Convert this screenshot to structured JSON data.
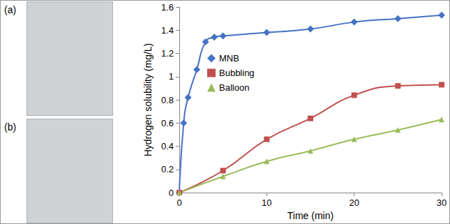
{
  "photos": [
    "(a)",
    "(b)"
  ],
  "chart_data": {
    "type": "line",
    "x_label": "Time (min)",
    "y_label": "Hydrogen solubility (mg/L)",
    "xlim": [
      0,
      30
    ],
    "xticks": [
      0,
      10,
      20,
      30
    ],
    "ylim": [
      0,
      1.6
    ],
    "yticks": [
      0,
      0.2,
      0.4,
      0.6,
      0.8,
      1,
      1.2,
      1.4,
      1.6
    ],
    "grid": false,
    "legend": "upper left",
    "series": [
      {
        "name": "MNB",
        "color": "#4472c4",
        "marker": "diamond",
        "line_style": "solid",
        "x": [
          0,
          0.5,
          1,
          2,
          3,
          4,
          5,
          10,
          15,
          20,
          25,
          30
        ],
        "values": [
          0,
          0.6,
          0.82,
          1.06,
          1.3,
          1.34,
          1.35,
          1.38,
          1.41,
          1.47,
          1.5,
          1.53
        ]
      },
      {
        "name": "Bubbling",
        "color": "#c0504d",
        "marker": "square",
        "line_style": "solid",
        "x": [
          0,
          5,
          10,
          15,
          20,
          25,
          30
        ],
        "values": [
          0,
          0.19,
          0.46,
          0.64,
          0.84,
          0.92,
          0.93
        ]
      },
      {
        "name": "Balloon",
        "color": "#9bbb59",
        "marker": "triangle",
        "line_style": "solid",
        "x": [
          0,
          5,
          10,
          15,
          20,
          25,
          30
        ],
        "values": [
          0,
          0.14,
          0.27,
          0.36,
          0.46,
          0.54,
          0.63
        ]
      }
    ]
  }
}
